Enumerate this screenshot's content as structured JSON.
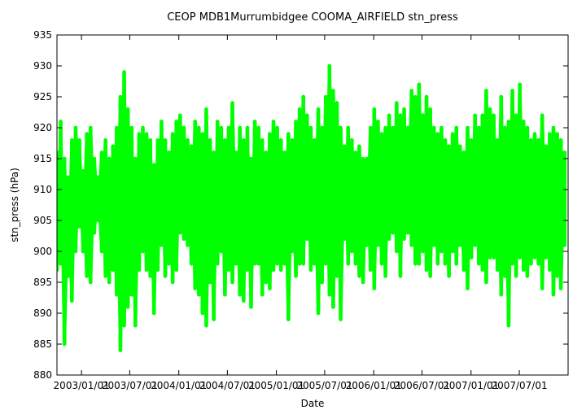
{
  "chart_data": {
    "type": "scatter",
    "title": "CEOP MDB1Murrumbidgee COOMA_AIRFIELD  stn_press",
    "xlabel": "Date",
    "ylabel": "stn_press (hPa)",
    "ylim": [
      880,
      935
    ],
    "yticks": [
      880,
      885,
      890,
      895,
      900,
      905,
      910,
      915,
      920,
      925,
      930,
      935
    ],
    "xlim": [
      "2002/10/01",
      "2007/12/31"
    ],
    "xticks": [
      "2003/01/01",
      "2003/07/01",
      "2004/01/01",
      "2004/07/01",
      "2005/01/01",
      "2005/07/01",
      "2006/01/01",
      "2006/07/01",
      "2007/01/01",
      "2007/07/01"
    ],
    "xtick_labels": [
      "2003/01/01",
      "2003/07/01",
      "2004/01/01",
      "2004/07/01",
      "2005/01/01",
      "2005/07/01",
      "2006/01/01",
      "2006/07/01",
      "2007/01/01",
      "2007/07/01"
    ],
    "grid": false,
    "series": [
      {
        "name": "",
        "color": "#00ff00",
        "x": [
          "2002/10/01",
          "2002/10/15",
          "2002/10/29",
          "2002/11/12",
          "2002/11/26",
          "2002/12/10",
          "2002/12/24",
          "2003/01/07",
          "2003/01/21",
          "2003/02/04",
          "2003/02/18",
          "2003/03/04",
          "2003/03/18",
          "2003/04/01",
          "2003/04/15",
          "2003/04/29",
          "2003/05/13",
          "2003/05/27",
          "2003/06/10",
          "2003/06/24",
          "2003/07/08",
          "2003/07/22",
          "2003/08/05",
          "2003/08/19",
          "2003/09/02",
          "2003/09/16",
          "2003/09/30",
          "2003/10/14",
          "2003/10/28",
          "2003/11/11",
          "2003/11/25",
          "2003/12/09",
          "2003/12/23",
          "2004/01/06",
          "2004/01/20",
          "2004/02/03",
          "2004/02/17",
          "2004/03/02",
          "2004/03/16",
          "2004/03/30",
          "2004/04/13",
          "2004/04/27",
          "2004/05/11",
          "2004/05/25",
          "2004/06/08",
          "2004/06/22",
          "2004/07/06",
          "2004/07/20",
          "2004/08/03",
          "2004/08/17",
          "2004/08/31",
          "2004/09/14",
          "2004/09/28",
          "2004/10/12",
          "2004/10/26",
          "2004/11/09",
          "2004/11/23",
          "2004/12/07",
          "2004/12/21",
          "2005/01/04",
          "2005/01/18",
          "2005/02/01",
          "2005/02/15",
          "2005/03/01",
          "2005/03/15",
          "2005/03/29",
          "2005/04/12",
          "2005/04/26",
          "2005/05/10",
          "2005/05/24",
          "2005/06/07",
          "2005/06/21",
          "2005/07/05",
          "2005/07/19",
          "2005/08/02",
          "2005/08/16",
          "2005/08/30",
          "2005/09/13",
          "2005/09/27",
          "2005/10/11",
          "2005/10/25",
          "2005/11/08",
          "2005/11/22",
          "2005/12/06",
          "2005/12/20",
          "2006/01/03",
          "2006/01/17",
          "2006/01/31",
          "2006/02/14",
          "2006/02/28",
          "2006/03/14",
          "2006/03/28",
          "2006/04/11",
          "2006/04/25",
          "2006/05/09",
          "2006/05/23",
          "2006/06/06",
          "2006/06/20",
          "2006/07/04",
          "2006/07/18",
          "2006/08/01",
          "2006/08/15",
          "2006/08/29",
          "2006/09/12",
          "2006/09/26",
          "2006/10/10",
          "2006/10/24",
          "2006/11/07",
          "2006/11/21",
          "2006/12/05",
          "2006/12/19",
          "2007/01/02",
          "2007/01/16",
          "2007/01/30",
          "2007/02/13",
          "2007/02/27",
          "2007/03/13",
          "2007/03/27",
          "2007/04/10",
          "2007/04/24",
          "2007/05/08",
          "2007/05/22",
          "2007/06/05",
          "2007/06/19",
          "2007/07/03",
          "2007/07/17",
          "2007/07/31",
          "2007/08/14",
          "2007/08/28",
          "2007/09/11",
          "2007/09/25",
          "2007/10/09",
          "2007/10/23",
          "2007/11/06",
          "2007/11/20",
          "2007/12/04",
          "2007/12/18"
        ],
        "min": [
          897,
          898,
          885,
          896,
          892,
          900,
          904,
          900,
          896,
          895,
          903,
          905,
          900,
          896,
          895,
          897,
          893,
          884,
          888,
          891,
          893,
          888,
          897,
          900,
          897,
          896,
          890,
          897,
          901,
          896,
          898,
          895,
          897,
          903,
          902,
          901,
          898,
          894,
          893,
          890,
          888,
          895,
          889,
          898,
          900,
          893,
          897,
          895,
          898,
          893,
          892,
          897,
          891,
          898,
          898,
          893,
          895,
          894,
          897,
          898,
          897,
          898,
          889,
          900,
          896,
          898,
          898,
          902,
          897,
          898,
          890,
          895,
          898,
          893,
          891,
          896,
          889,
          902,
          898,
          900,
          898,
          896,
          895,
          901,
          897,
          894,
          901,
          898,
          896,
          902,
          903,
          900,
          896,
          902,
          903,
          901,
          898,
          898,
          900,
          897,
          896,
          901,
          898,
          900,
          898,
          896,
          900,
          898,
          901,
          897,
          894,
          899,
          901,
          898,
          897,
          895,
          899,
          899,
          897,
          893,
          896,
          888,
          898,
          896,
          899,
          897,
          896,
          898,
          899,
          898,
          894,
          899,
          897,
          893,
          896,
          894,
          901
        ],
        "max": [
          916,
          921,
          915,
          912,
          918,
          920,
          918,
          913,
          919,
          920,
          915,
          912,
          916,
          918,
          915,
          917,
          920,
          925,
          929,
          923,
          920,
          915,
          919,
          920,
          919,
          918,
          914,
          918,
          921,
          918,
          916,
          919,
          921,
          922,
          920,
          918,
          917,
          921,
          920,
          919,
          923,
          918,
          916,
          921,
          920,
          918,
          920,
          924,
          916,
          920,
          918,
          920,
          915,
          921,
          920,
          918,
          916,
          919,
          921,
          920,
          918,
          916,
          919,
          918,
          921,
          923,
          925,
          922,
          920,
          918,
          923,
          920,
          925,
          930,
          926,
          924,
          920,
          917,
          920,
          918,
          916,
          917,
          915,
          915,
          920,
          923,
          921,
          919,
          920,
          922,
          920,
          924,
          922,
          923,
          920,
          926,
          925,
          927,
          922,
          925,
          923,
          920,
          919,
          920,
          918,
          917,
          919,
          920,
          917,
          916,
          920,
          918,
          922,
          920,
          922,
          926,
          923,
          922,
          918,
          925,
          920,
          921,
          926,
          922,
          927,
          921,
          920,
          918,
          919,
          918,
          922,
          917,
          919,
          920,
          919,
          918,
          916
        ]
      }
    ]
  }
}
